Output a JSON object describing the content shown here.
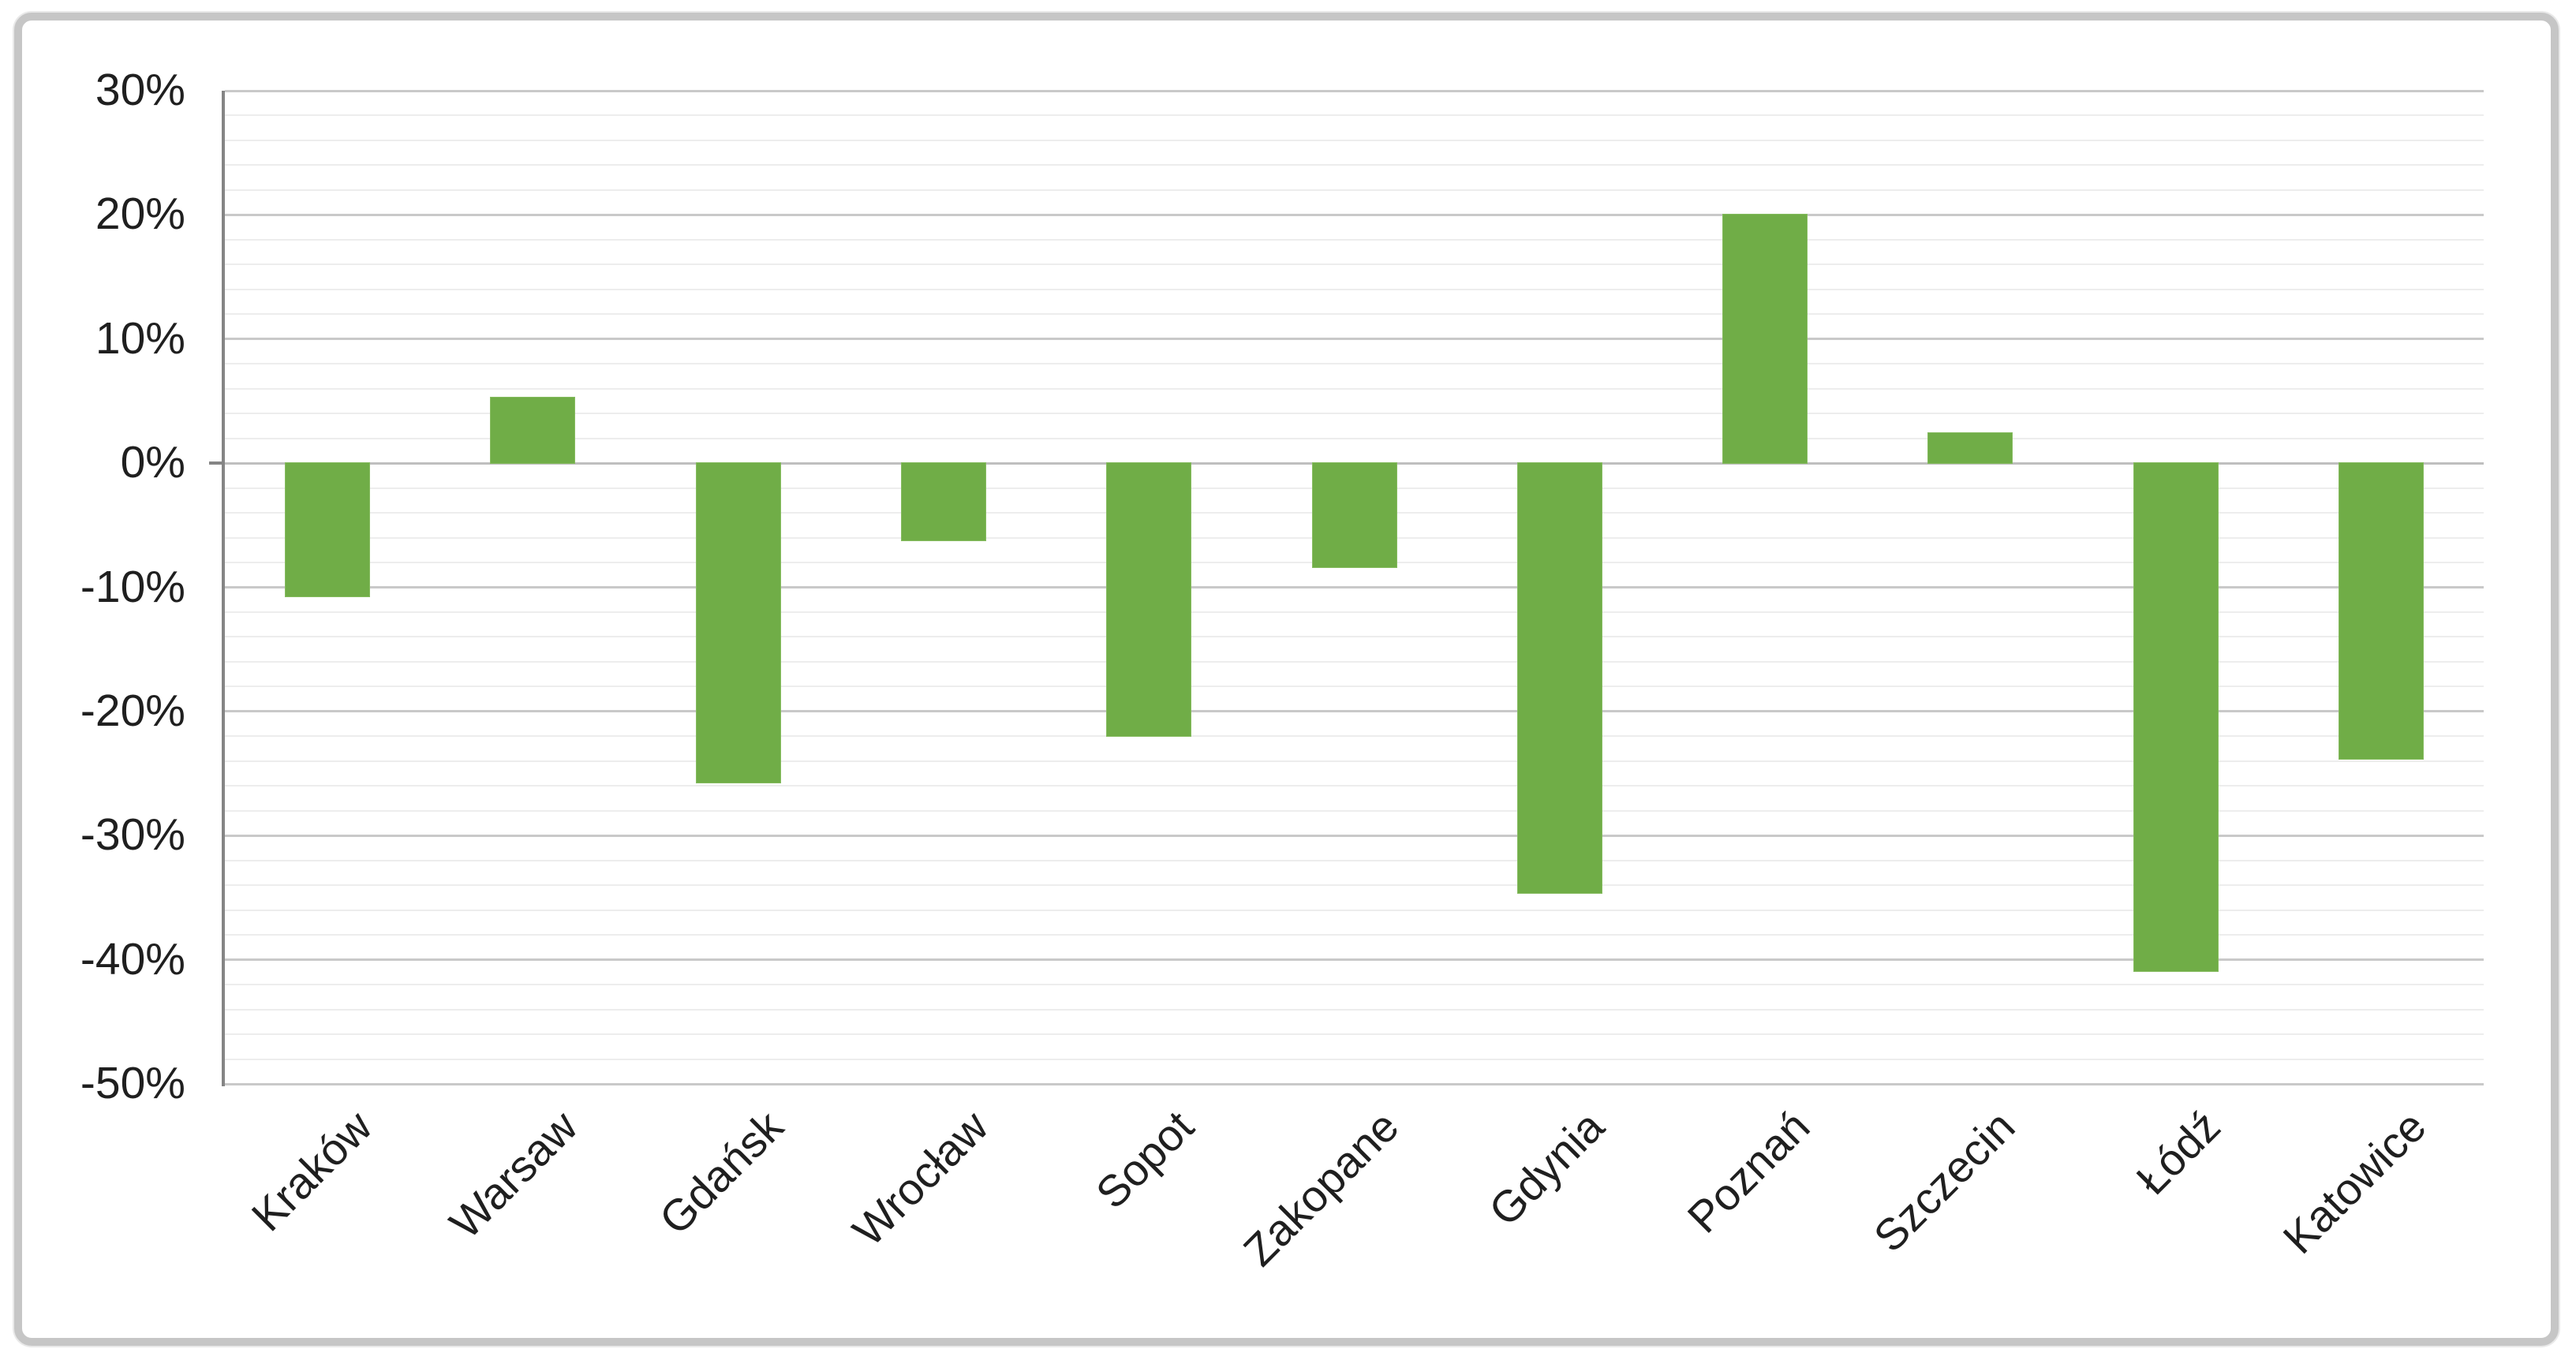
{
  "chart_data": {
    "type": "bar",
    "title": "",
    "xlabel": "",
    "ylabel": "",
    "categories": [
      "Kraków",
      "Warsaw",
      "Gdańsk",
      "Wrocław",
      "Sopot",
      "Zakopane",
      "Gdynia",
      "Poznań",
      "Szczecin",
      "Łódź",
      "Katowice"
    ],
    "values": [
      -10.7,
      5.3,
      -25.7,
      -6.2,
      -22.0,
      -8.4,
      -34.6,
      20.0,
      2.4,
      -40.9,
      -23.8
    ],
    "value_unit": "%",
    "ylim": [
      -50,
      30
    ],
    "y_major_step": 10,
    "y_minor_step": 2,
    "y_tick_labels": [
      "30%",
      "20%",
      "10%",
      "0%",
      "-10%",
      "-20%",
      "-30%",
      "-40%",
      "-50%"
    ],
    "grid": "major-and-minor-horizontal",
    "legend": "none",
    "bar_color": "#70AD47"
  },
  "colors": {
    "bar": "#70AD47",
    "major_gridline": "#c9c9c9",
    "minor_gridline": "#ededed",
    "axis_line": "#858585",
    "text": "#1f1f1f",
    "frame_border": "#c6c6c6",
    "background": "#ffffff"
  }
}
